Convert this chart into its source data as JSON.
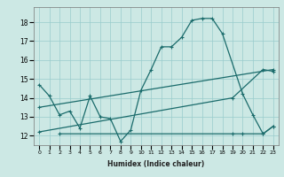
{
  "xlabel": "Humidex (Indice chaleur)",
  "xlim": [
    -0.5,
    23.5
  ],
  "ylim": [
    11.5,
    18.8
  ],
  "xticks": [
    0,
    1,
    2,
    3,
    4,
    5,
    6,
    7,
    8,
    9,
    10,
    11,
    12,
    13,
    14,
    15,
    16,
    17,
    18,
    19,
    20,
    21,
    22,
    23
  ],
  "yticks": [
    12,
    13,
    14,
    15,
    16,
    17,
    18
  ],
  "bg_color": "#cce8e4",
  "grid_color": "#99cccc",
  "line_color": "#1a6b6b",
  "line1_x": [
    0,
    1,
    2,
    3,
    4,
    5,
    6,
    7,
    8,
    9,
    10,
    11,
    12,
    13,
    14,
    15,
    16,
    17,
    18,
    20,
    21,
    22,
    23
  ],
  "line1_y": [
    14.7,
    14.1,
    13.1,
    13.3,
    12.4,
    14.1,
    13.0,
    12.9,
    11.7,
    12.3,
    14.4,
    15.5,
    16.7,
    16.7,
    17.2,
    18.1,
    18.2,
    18.2,
    17.4,
    14.2,
    13.1,
    12.1,
    12.5
  ],
  "line2_x": [
    0,
    23
  ],
  "line2_y": [
    13.5,
    15.5
  ],
  "line3_x": [
    0,
    19,
    22,
    23
  ],
  "line3_y": [
    12.2,
    14.0,
    15.5,
    15.4
  ],
  "line4_x": [
    2,
    19,
    20,
    22,
    23
  ],
  "line4_y": [
    12.1,
    12.1,
    12.1,
    12.1,
    12.5
  ]
}
